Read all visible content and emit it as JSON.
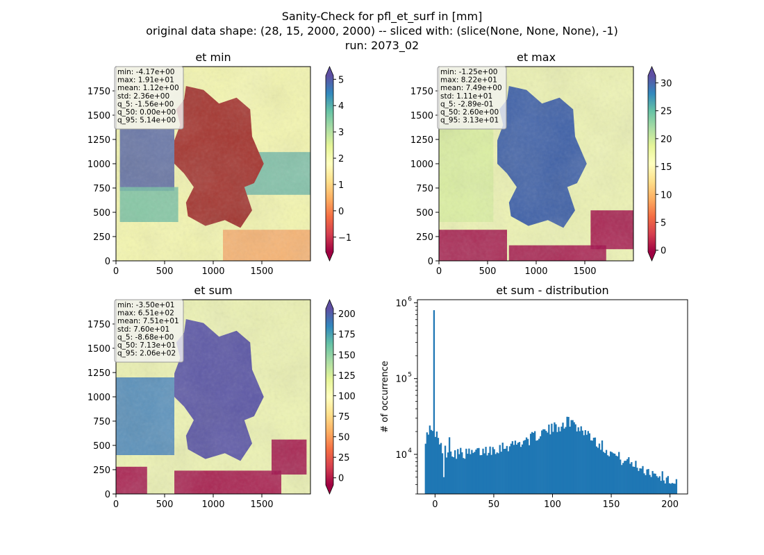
{
  "figure": {
    "title_line1": "Sanity-Check for pfl_et_surf in [mm]",
    "title_line2": "original data shape: (28, 15, 2000, 2000) -- sliced with: (slice(None, None, None), -1)",
    "title_line3": "run: 2073_02"
  },
  "colormap": "Spectral",
  "map_axis": {
    "x_ticks": [
      0,
      500,
      1000,
      1500
    ],
    "y_ticks": [
      0,
      250,
      500,
      750,
      1000,
      1250,
      1500,
      1750
    ],
    "extent": [
      0,
      2000
    ]
  },
  "panels": [
    {
      "title": "et min",
      "colorbar": {
        "min": -1.56,
        "max": 5.14,
        "ticks": [
          -1,
          0,
          1,
          2,
          3,
          4,
          5
        ],
        "tick_labels": [
          "−1",
          "0",
          "1",
          "2",
          "3",
          "4",
          "5"
        ],
        "extend": "both"
      },
      "stats": [
        "min: -4.17e+00",
        "max: 1.91e+01",
        "mean: 1.12e+00",
        "std: 2.36e+00",
        "q_5: -1.56e+00",
        "q_50: 0.00e+00",
        "q_95: 5.14e+00"
      ]
    },
    {
      "title": "et max",
      "colorbar": {
        "min": -0.289,
        "max": 31.3,
        "ticks": [
          0,
          5,
          10,
          15,
          20,
          25,
          30
        ],
        "tick_labels": [
          "0",
          "5",
          "10",
          "15",
          "20",
          "25",
          "30"
        ],
        "extend": "both"
      },
      "stats": [
        "min: -1.25e+00",
        "max: 8.22e+01",
        "mean: 7.49e+00",
        "std: 1.11e+01",
        "q_5: -2.89e-01",
        "q_50: 2.60e+00",
        "q_95: 3.13e+01"
      ]
    },
    {
      "title": "et sum",
      "colorbar": {
        "min": -8.68,
        "max": 206,
        "ticks": [
          0,
          25,
          50,
          75,
          100,
          125,
          150,
          175,
          200
        ],
        "tick_labels": [
          "0",
          "25",
          "50",
          "75",
          "100",
          "125",
          "150",
          "175",
          "200"
        ],
        "extend": "both"
      },
      "stats": [
        "min: -3.50e+01",
        "max: 6.51e+02",
        "mean: 7.51e+01",
        "std: 7.60e+01",
        "q_5: -8.68e+00",
        "q_50: 7.13e+01",
        "q_95: 2.06e+02"
      ]
    }
  ],
  "chart_data": {
    "type": "bar",
    "title": "et sum - distribution",
    "xlabel": "",
    "ylabel": "# of occurrence",
    "yscale": "log",
    "color": "#1f77b4",
    "xlim": [
      -15,
      215
    ],
    "ylim": [
      3000,
      1100000
    ],
    "x_ticks": [
      0,
      50,
      100,
      150,
      200
    ],
    "y_ticks": [
      10000,
      100000,
      1000000
    ],
    "y_tick_labels": [
      [
        "10",
        "4"
      ],
      [
        "10",
        "5"
      ],
      [
        "10",
        "6"
      ]
    ],
    "bins": {
      "start": -8.7,
      "end": 206,
      "count": 180
    },
    "curve": [
      [
        -8.7,
        17000
      ],
      [
        -5,
        16000
      ],
      [
        -2,
        19000
      ],
      [
        0,
        17000
      ],
      [
        3,
        14000
      ],
      [
        6,
        12000
      ],
      [
        10,
        11000
      ],
      [
        20,
        10500
      ],
      [
        30,
        10200
      ],
      [
        40,
        11000
      ],
      [
        50,
        12000
      ],
      [
        60,
        13000
      ],
      [
        70,
        14000
      ],
      [
        80,
        16000
      ],
      [
        90,
        19000
      ],
      [
        100,
        22000
      ],
      [
        110,
        26000
      ],
      [
        115,
        28000
      ],
      [
        120,
        24000
      ],
      [
        130,
        19000
      ],
      [
        140,
        14000
      ],
      [
        150,
        10500
      ],
      [
        160,
        8500
      ],
      [
        170,
        7300
      ],
      [
        180,
        6200
      ],
      [
        190,
        5400
      ],
      [
        200,
        4600
      ],
      [
        206,
        4300
      ]
    ],
    "spikes": [
      [
        -6.5,
        19500
      ],
      [
        -4.5,
        24000
      ],
      [
        -3.5,
        21000
      ],
      [
        -1,
        800000
      ],
      [
        1,
        20000
      ],
      [
        2.5,
        16500
      ],
      [
        7.5,
        5000
      ],
      [
        12,
        16800
      ]
    ]
  }
}
